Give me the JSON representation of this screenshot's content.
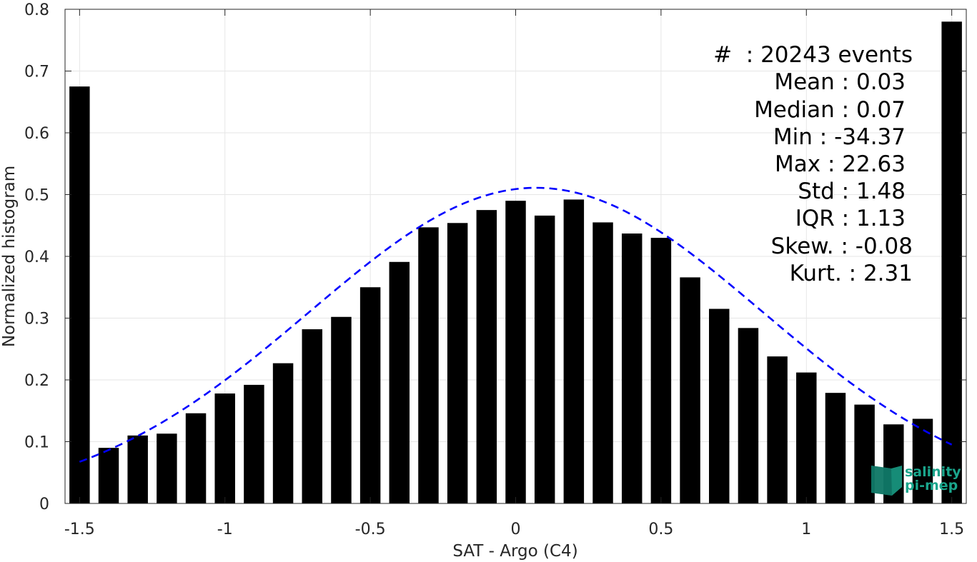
{
  "chart_data": {
    "type": "bar",
    "xlabel": "SAT - Argo (C4)",
    "ylabel": "Normalized histogram",
    "xlim": [
      -1.55,
      1.55
    ],
    "ylim": [
      0,
      0.8
    ],
    "grid": true,
    "bar_width": 0.07,
    "xticks": [
      -1.5,
      -1,
      -0.5,
      0,
      0.5,
      1,
      1.5
    ],
    "xtick_labels": [
      "-1.5",
      "-1",
      "-0.5",
      "0",
      "0.5",
      "1",
      "1.5"
    ],
    "yticks": [
      0,
      0.1,
      0.2,
      0.3,
      0.4,
      0.5,
      0.6,
      0.7,
      0.8
    ],
    "ytick_labels": [
      "0",
      "0.1",
      "0.2",
      "0.3",
      "0.4",
      "0.5",
      "0.6",
      "0.7",
      "0.8"
    ],
    "bars": {
      "x": [
        -1.5,
        -1.4,
        -1.3,
        -1.2,
        -1.1,
        -1.0,
        -0.9,
        -0.8,
        -0.7,
        -0.6,
        -0.5,
        -0.4,
        -0.3,
        -0.2,
        -0.1,
        0.0,
        0.1,
        0.2,
        0.3,
        0.4,
        0.5,
        0.6,
        0.7,
        0.8,
        0.9,
        1.0,
        1.1,
        1.2,
        1.3,
        1.4,
        1.5
      ],
      "values": [
        0.675,
        0.09,
        0.11,
        0.113,
        0.146,
        0.178,
        0.192,
        0.227,
        0.282,
        0.302,
        0.35,
        0.391,
        0.447,
        0.454,
        0.475,
        0.49,
        0.466,
        0.492,
        0.455,
        0.437,
        0.43,
        0.366,
        0.315,
        0.284,
        0.238,
        0.212,
        0.179,
        0.16,
        0.128,
        0.137,
        0.78
      ]
    },
    "fit_curve": {
      "style": "dashed",
      "color": "#0000ff",
      "mean": 0.07,
      "std": 0.78,
      "peak": 0.511,
      "x_range": [
        -1.5,
        1.5
      ]
    },
    "stats": [
      "#  : 20243 events",
      "Mean : 0.03",
      "Median : 0.07",
      "Min : -34.37",
      "Max : 22.63",
      "Std : 1.48",
      "IQR : 1.13",
      "Skew. : -0.08",
      "Kurt. : 2.31"
    ]
  },
  "logo": {
    "line1": "salinity",
    "line2": "pi-mep",
    "color": "#1aa58c",
    "dark_color": "#0e6b5c"
  }
}
